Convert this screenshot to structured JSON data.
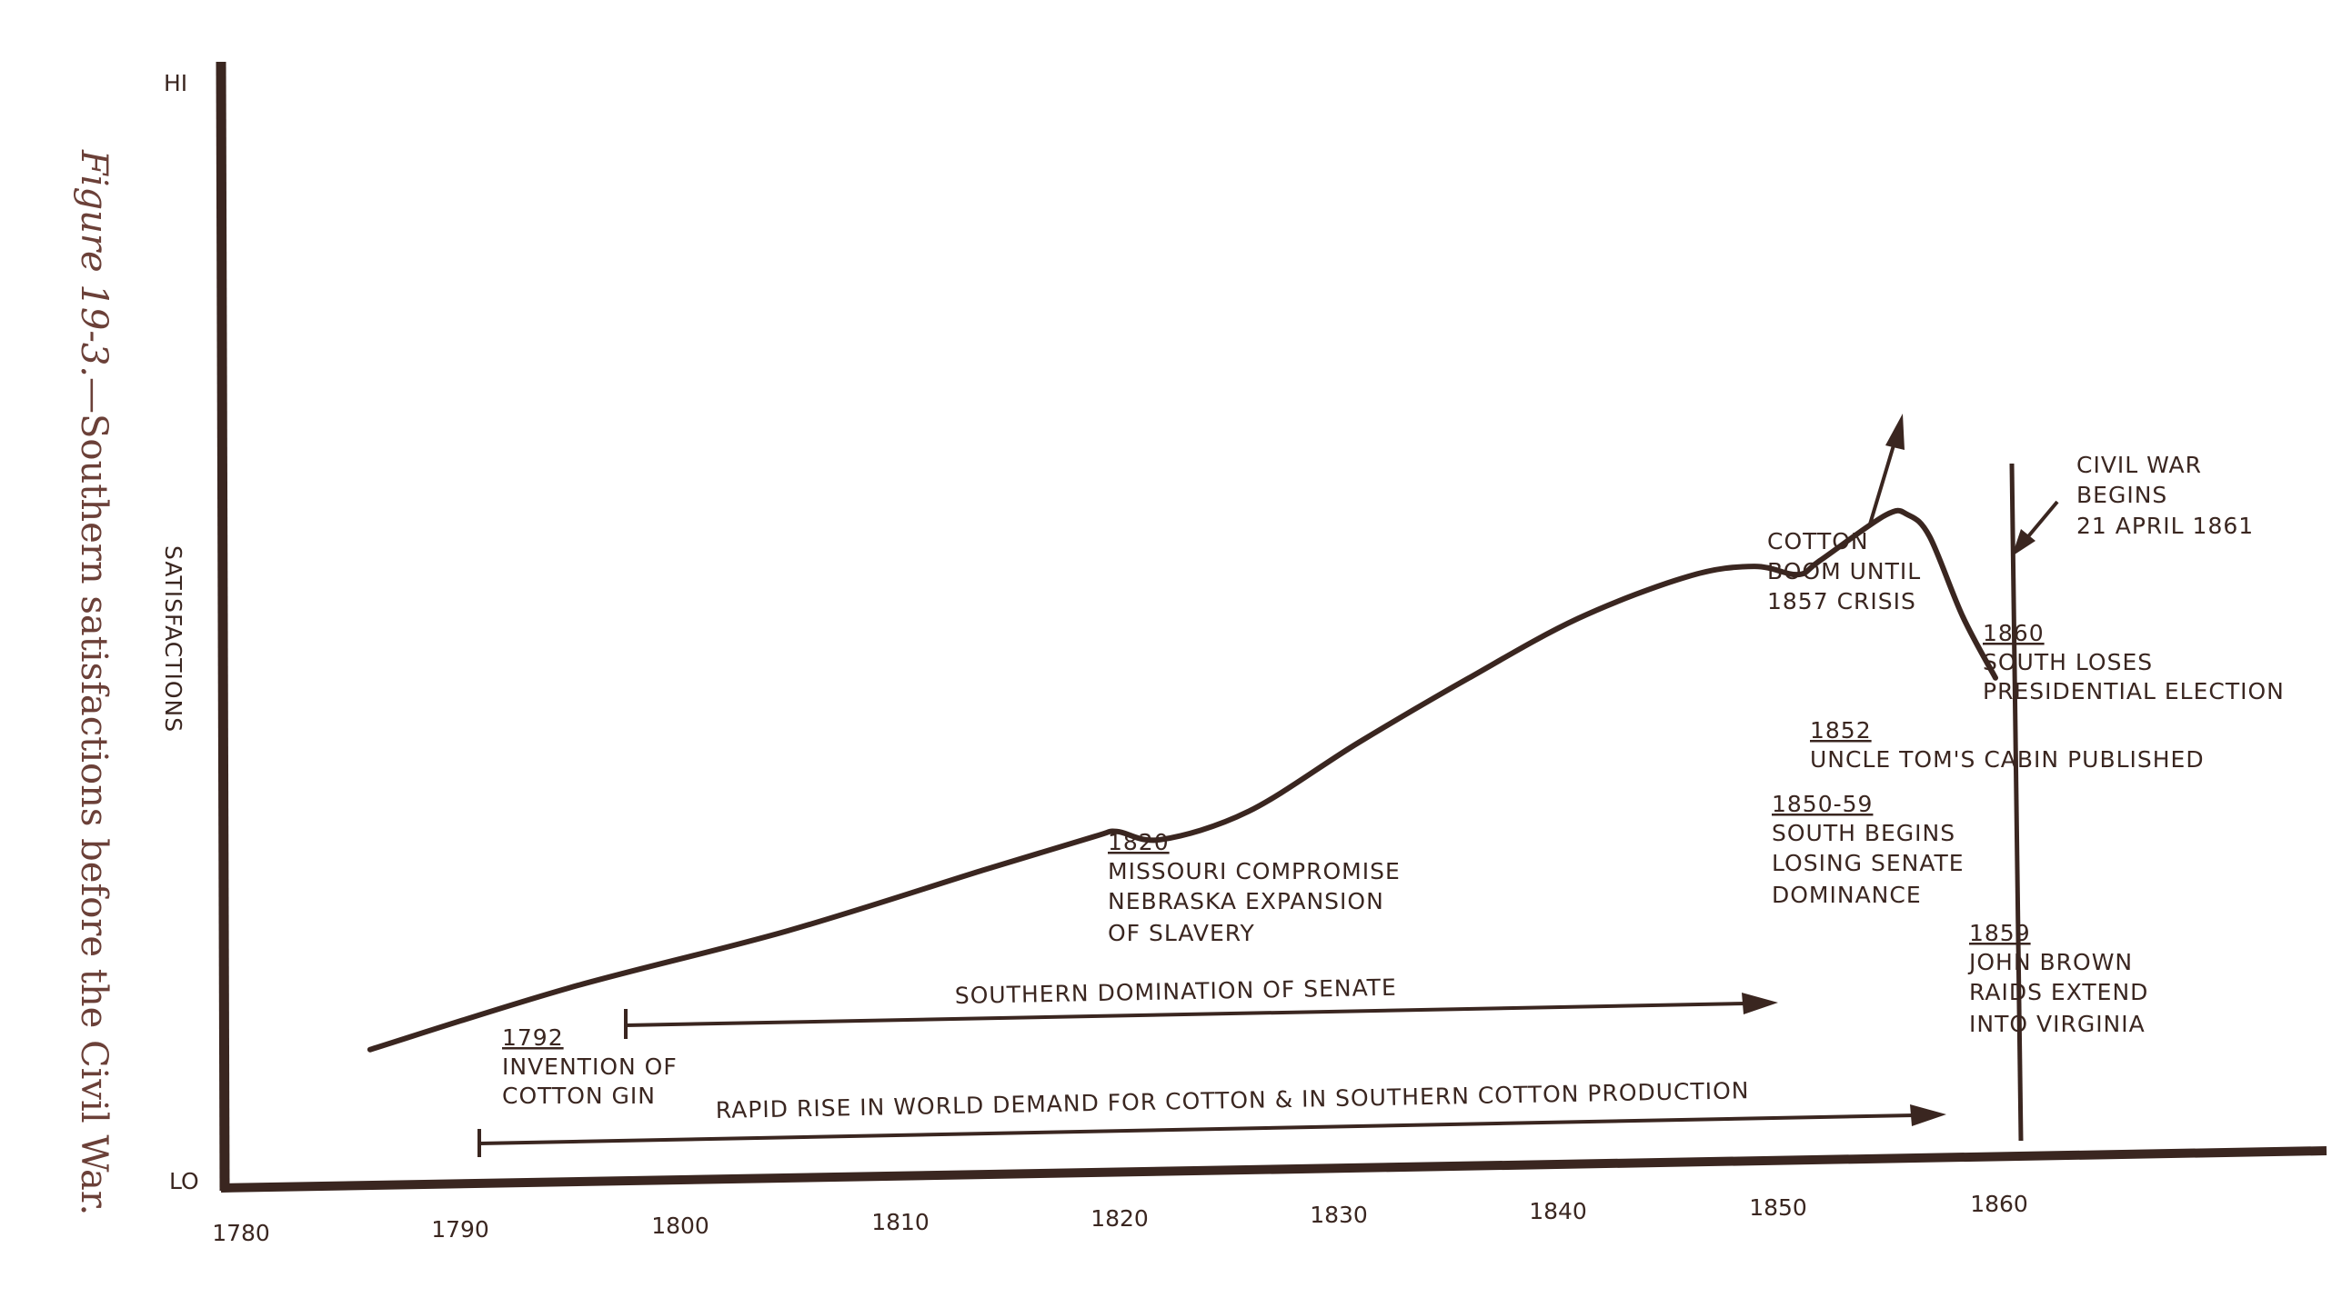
{
  "caption": {
    "label": "Figure 19-3.",
    "text": "—Southern satisfactions before the Civil War."
  },
  "colors": {
    "ink": "#3a2620",
    "caption": "#6b4038"
  },
  "chart_data": {
    "type": "line",
    "title": "",
    "xlabel": "",
    "ylabel": "SATISFACTIONS",
    "y_top_label": "HI",
    "y_bottom_label": "LO",
    "xlim": [
      1780,
      1867
    ],
    "ylim": [
      0,
      100
    ],
    "x_ticks": [
      "1780",
      "1790",
      "1800",
      "1810",
      "1820",
      "1830",
      "1840",
      "1850",
      "1860"
    ],
    "grid": false,
    "series": [
      {
        "x": [
          1786,
          1795,
          1805,
          1814,
          1819,
          1820,
          1822,
          1826,
          1831,
          1836,
          1841,
          1846,
          1849,
          1851,
          1852,
          1855,
          1856,
          1857,
          1858.5,
          1860
        ],
        "y": [
          11.5,
          18,
          24,
          30.5,
          34,
          34.5,
          33.5,
          36.5,
          44,
          51,
          57.5,
          62,
          63,
          62,
          63.5,
          68.5,
          68.5,
          66,
          57,
          50
        ]
      }
    ],
    "annotations": [
      {
        "x": 1792,
        "date": "1792",
        "lines": [
          "INVENTION OF",
          "COTTON GIN"
        ]
      },
      {
        "x": 1820,
        "date": "1820",
        "lines": [
          "MISSOURI COMPROMISE",
          "NEBRASKA EXPANSION",
          "OF SLAVERY"
        ]
      },
      {
        "x": 1850,
        "date": "",
        "lines": [
          "COTTON",
          "BOOM UNTIL",
          "1857 CRISIS"
        ]
      },
      {
        "x": 1861,
        "date": "",
        "lines": [
          "CIVIL WAR",
          "BEGINS",
          "21 APRIL 1861"
        ]
      },
      {
        "x": 1860,
        "date": "1860",
        "lines": [
          "SOUTH LOSES",
          "PRESIDENTIAL ELECTION"
        ]
      },
      {
        "x": 1852,
        "date": "1852",
        "lines": [
          "UNCLE TOM'S CABIN PUBLISHED"
        ]
      },
      {
        "x": 1850,
        "date": "1850-59",
        "lines": [
          "SOUTH BEGINS",
          "LOSING SENATE",
          "DOMINANCE"
        ]
      },
      {
        "x": 1859,
        "date": "1859",
        "lines": [
          "JOHN BROWN",
          "RAIDS EXTEND",
          "INTO VIRGINIA"
        ]
      }
    ],
    "ranges": [
      {
        "label": "SOUTHERN DOMINATION OF SENATE",
        "start": 1798,
        "end": 1850
      },
      {
        "label": "RAPID RISE IN WORLD DEMAND FOR COTTON & IN SOUTHERN COTTON PRODUCTION",
        "start": 1791,
        "end": 1858
      }
    ]
  }
}
